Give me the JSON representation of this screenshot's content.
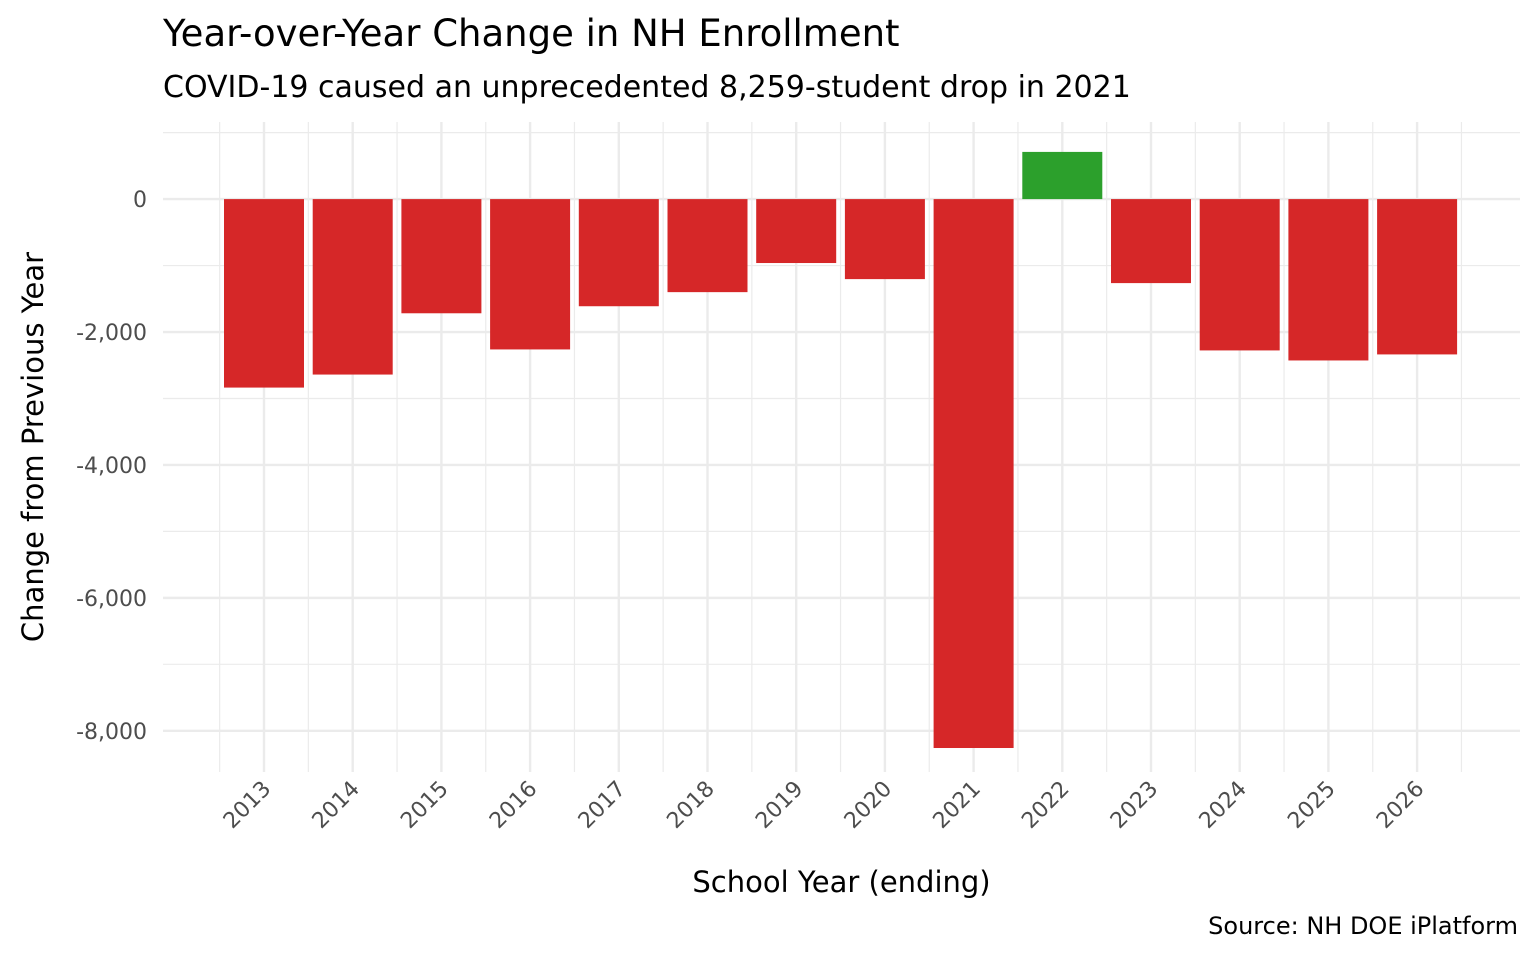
{
  "chart_data": {
    "type": "bar",
    "title": "Year-over-Year Change in NH Enrollment",
    "subtitle": "COVID-19 caused an unprecedented 8,259-student drop in 2021",
    "caption": "Source: NH DOE iPlatform",
    "xlabel": "School Year (ending)",
    "ylabel": "Change from Previous Year",
    "categories": [
      "2013",
      "2014",
      "2015",
      "2016",
      "2017",
      "2018",
      "2019",
      "2020",
      "2021",
      "2022",
      "2023",
      "2024",
      "2025",
      "2026"
    ],
    "values": [
      -2836,
      -2640,
      -1718,
      -2262,
      -1612,
      -1400,
      -962,
      -1204,
      -8259,
      710,
      -1264,
      -2277,
      -2428,
      -2337
    ],
    "ylim": [
      -8620,
      1160
    ],
    "yticks": [
      0,
      -2000,
      -4000,
      -6000,
      -8000
    ],
    "ytick_labels": [
      "0",
      "-2,000",
      "-4,000",
      "-6,000",
      "-8,000"
    ],
    "grid": true,
    "legend": "none",
    "colors": {
      "negative": "#d62728",
      "positive": "#2ca02c",
      "grid": "#ebebeb"
    }
  }
}
